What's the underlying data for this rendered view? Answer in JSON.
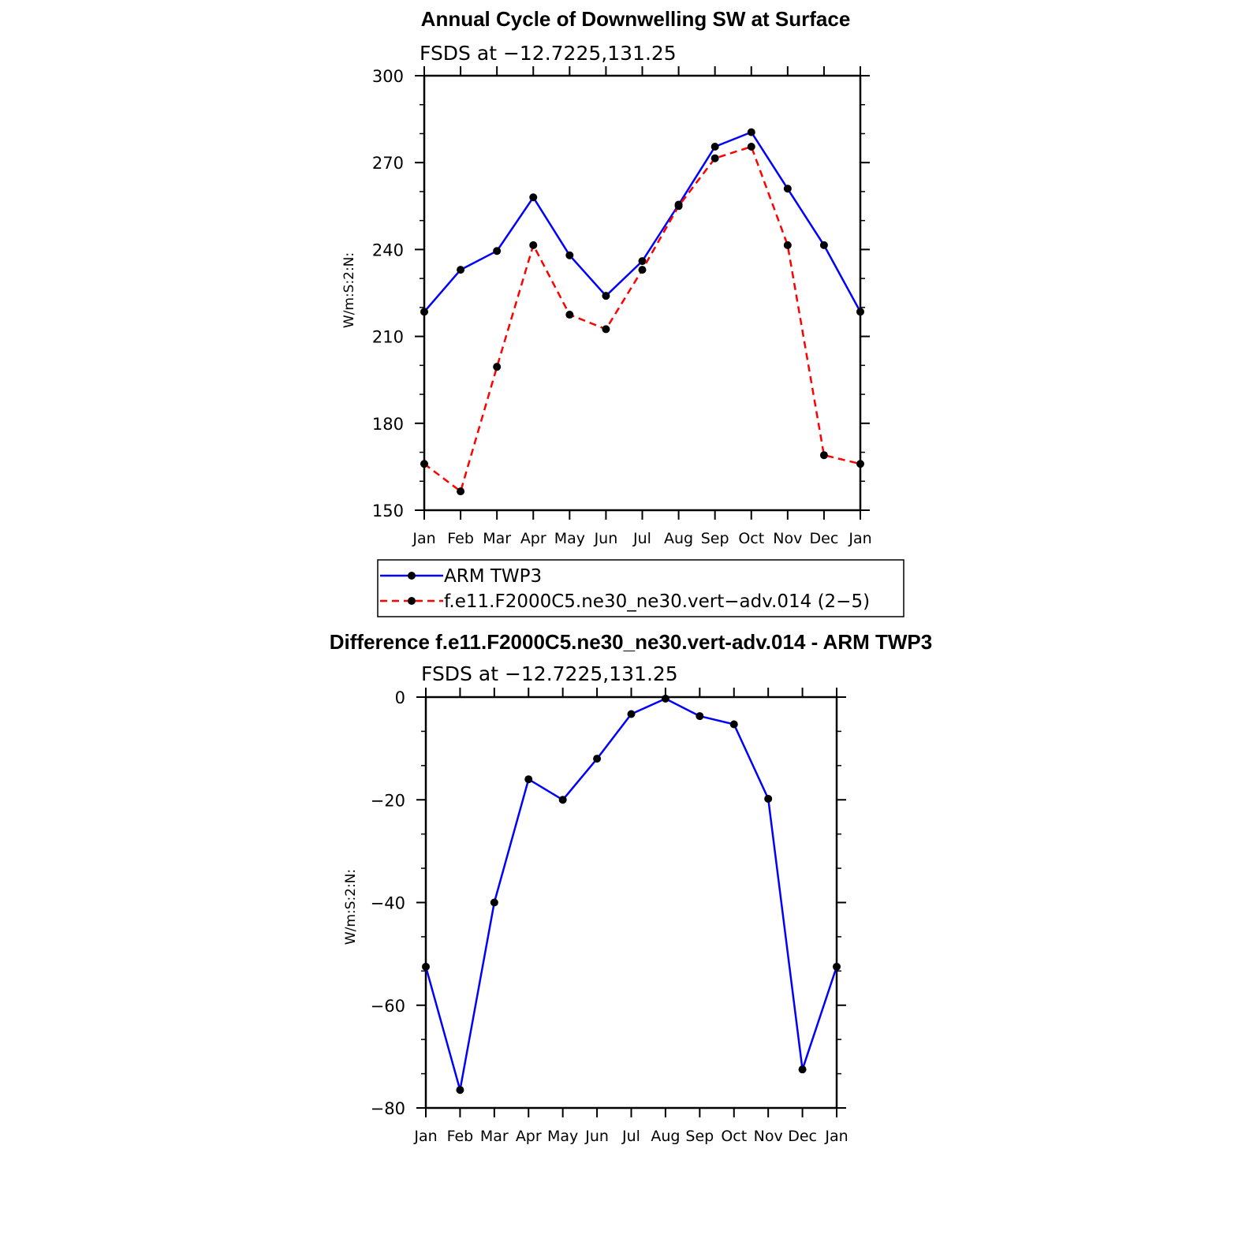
{
  "chart_data": [
    {
      "type": "line",
      "title": "Annual Cycle of Downwelling SW at Surface",
      "subtitle": "FSDS at −12.7225,131.25",
      "ylabel": "W/m:S:2:N:",
      "xlabel": "",
      "categories": [
        "Jan",
        "Feb",
        "Mar",
        "Apr",
        "May",
        "Jun",
        "Jul",
        "Aug",
        "Sep",
        "Oct",
        "Nov",
        "Dec",
        "Jan"
      ],
      "ylim": [
        150,
        300
      ],
      "yticks": [
        150,
        180,
        210,
        240,
        270,
        300
      ],
      "grid": false,
      "series": [
        {
          "name": "ARM TWP3",
          "color": "#0000ff",
          "dash": "solid",
          "values": [
            218.5,
            233,
            239.5,
            258,
            238,
            224,
            236,
            255.5,
            275.5,
            280.5,
            261,
            241.5,
            218.5
          ]
        },
        {
          "name": "f.e11.F2000C5.ne30_ne30.vert−adv.014 (2−5)",
          "color": "#ff0000",
          "dash": "dashed",
          "values": [
            166,
            156.5,
            199.5,
            241.5,
            217.5,
            212.5,
            233,
            255,
            271.5,
            275.5,
            241.5,
            169,
            166
          ]
        }
      ],
      "legend": {
        "placement": "bottom",
        "entries": [
          "ARM TWP3",
          "f.e11.F2000C5.ne30_ne30.vert−adv.014 (2−5)"
        ]
      }
    },
    {
      "type": "line",
      "title": "Difference f.e11.F2000C5.ne30_ne30.vert-adv.014 - ARM TWP3",
      "subtitle": "FSDS at −12.7225,131.25",
      "ylabel": "W/m:S:2:N:",
      "xlabel": "",
      "categories": [
        "Jan",
        "Feb",
        "Mar",
        "Apr",
        "May",
        "Jun",
        "Jul",
        "Aug",
        "Sep",
        "Oct",
        "Nov",
        "Dec",
        "Jan"
      ],
      "ylim": [
        -80,
        0
      ],
      "yticks": [
        -80,
        -60,
        -40,
        -20,
        0
      ],
      "ytick_labels": [
        "−80",
        "−60",
        "−40",
        "−20",
        "0"
      ],
      "grid": false,
      "series": [
        {
          "color": "#0000ff",
          "dash": "solid",
          "values": [
            -52.5,
            -76.5,
            -40,
            -16,
            -20,
            -12,
            -3.3,
            -0.3,
            -3.7,
            -5.3,
            -19.8,
            -72.5,
            -52.5
          ]
        }
      ]
    }
  ]
}
